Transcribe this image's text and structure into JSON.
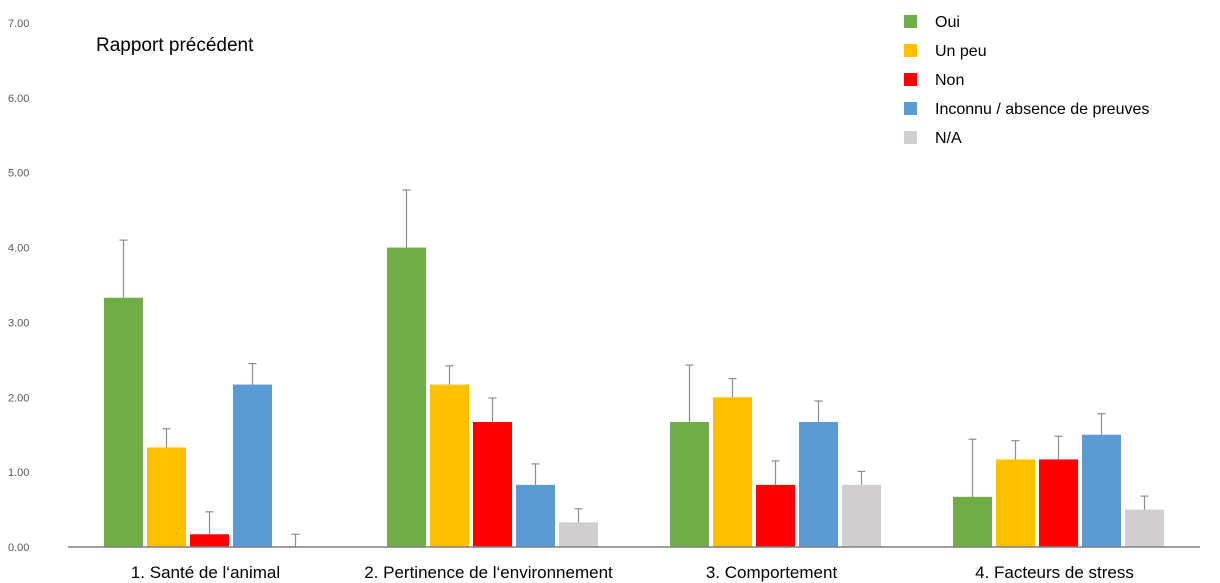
{
  "chart_data": {
    "type": "bar",
    "title": "Rapport précédent",
    "categories": [
      "1. Santé de l‘animal",
      "2. Pertinence de l‘environnement",
      "3. Comportement",
      "4. Facteurs de stress"
    ],
    "ylim": [
      0,
      7
    ],
    "yticks": [
      "0.00",
      "1.00",
      "2.00",
      "3.00",
      "4.00",
      "5.00",
      "6.00",
      "7.00"
    ],
    "legend_position": "top-right",
    "error_bars": true,
    "series": [
      {
        "name": "Oui",
        "color": "#70AD47",
        "values": [
          3.33,
          4.0,
          1.67,
          0.67
        ],
        "errors": [
          0.77,
          0.77,
          0.76,
          0.77
        ]
      },
      {
        "name": "Un peu",
        "color": "#FFC000",
        "values": [
          1.33,
          2.17,
          2.0,
          1.17
        ],
        "errors": [
          0.25,
          0.25,
          0.25,
          0.25
        ]
      },
      {
        "name": "Non",
        "color": "#FF0000",
        "values": [
          0.17,
          1.67,
          0.83,
          1.17
        ],
        "errors": [
          0.3,
          0.32,
          0.32,
          0.31
        ]
      },
      {
        "name": "Inconnu / absence de preuves",
        "color": "#5B9BD5",
        "values": [
          2.17,
          0.83,
          1.67,
          1.5
        ],
        "errors": [
          0.28,
          0.28,
          0.28,
          0.28
        ]
      },
      {
        "name": "N/A",
        "color": "#D0CECE",
        "values": [
          0.0,
          0.33,
          0.83,
          0.5
        ],
        "errors": [
          0.17,
          0.18,
          0.18,
          0.18
        ]
      }
    ]
  }
}
